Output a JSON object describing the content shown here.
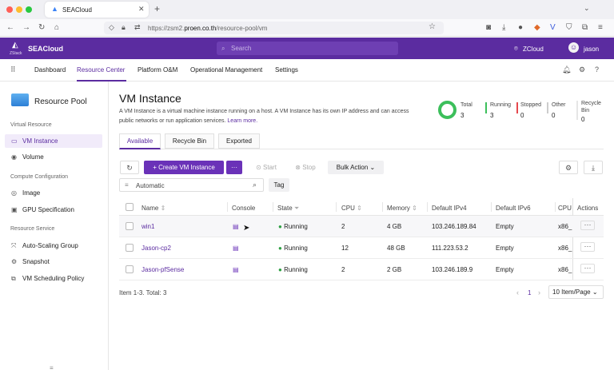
{
  "browser": {
    "tab_title": "SEACloud",
    "url_prefix": "https://zsm2.",
    "url_domain": "proen.co.th",
    "url_path": "/resource-pool/vm"
  },
  "header": {
    "brand": "SEACloud",
    "logo_text": "ZStack",
    "search_placeholder": "Search",
    "zone": "ZCloud",
    "username": "jason"
  },
  "menu": {
    "items": [
      "Dashboard",
      "Resource Center",
      "Platform O&M",
      "Operational Management",
      "Settings"
    ],
    "active": "Resource Center"
  },
  "sidebar": {
    "title": "Resource Pool",
    "sections": [
      {
        "label": "Virtual Resource"
      },
      {
        "label": "Compute Configuration"
      },
      {
        "label": "Resource Service"
      }
    ],
    "items": [
      {
        "label": "VM Instance",
        "icon": "monitor-icon"
      },
      {
        "label": "Volume",
        "icon": "disk-icon"
      },
      {
        "label": "Image",
        "icon": "image-icon"
      },
      {
        "label": "GPU Specification",
        "icon": "gpu-icon"
      },
      {
        "label": "Auto-Scaling Group",
        "icon": "scaling-icon"
      },
      {
        "label": "Snapshot",
        "icon": "snapshot-icon"
      },
      {
        "label": "VM Scheduling Policy",
        "icon": "policy-icon"
      }
    ]
  },
  "page": {
    "title": "VM Instance",
    "description": "A VM Instance is a virtual machine instance running on a host. A VM Instance has its own IP address and can access public networks or run application services.",
    "learn_more": "Learn more.",
    "stats": {
      "total_label": "Total",
      "total": "3",
      "running_label": "Running",
      "running": "3",
      "stopped_label": "Stopped",
      "stopped": "0",
      "other_label": "Other",
      "other": "0",
      "recycle_label_1": "Recycle",
      "recycle_label_2": "Bin",
      "recycle": "0"
    },
    "tabs": [
      "Available",
      "Recycle Bin",
      "Exported"
    ],
    "toolbar": {
      "create": "+ Create VM Instance",
      "more": "···",
      "start": "Start",
      "stop": "Stop",
      "bulk": "Bulk Action"
    },
    "filter": {
      "value": "Automatic",
      "tag": "Tag"
    },
    "columns": [
      "Name",
      "Console",
      "State",
      "CPU",
      "Memory",
      "Default IPv4",
      "Default IPv6",
      "CPU",
      "Actions"
    ],
    "rows": [
      {
        "name": "win1",
        "state": "Running",
        "cpu": "2",
        "memory": "4 GB",
        "ipv4": "103.246.189.84",
        "ipv6": "Empty",
        "cpu_arch": "x86_"
      },
      {
        "name": "Jason-cp2",
        "state": "Running",
        "cpu": "12",
        "memory": "48 GB",
        "ipv4": "111.223.53.2",
        "ipv6": "Empty",
        "cpu_arch": "x86_"
      },
      {
        "name": "Jason-pfSense",
        "state": "Running",
        "cpu": "2",
        "memory": "2 GB",
        "ipv4": "103.246.189.9",
        "ipv6": "Empty",
        "cpu_arch": "x86_"
      }
    ],
    "footer": {
      "summary": "Item 1-3. Total: 3",
      "page": "1",
      "page_size": "10 Item/Page"
    }
  },
  "colors": {
    "brand": "#5b2ca0",
    "running": "#2ea043",
    "stopped": "#e5484d"
  }
}
